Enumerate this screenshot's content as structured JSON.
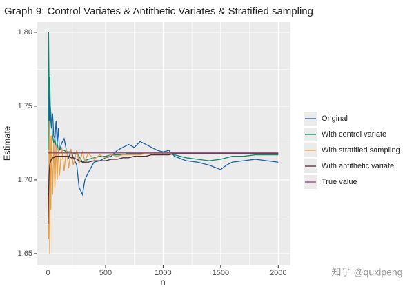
{
  "chart_data": {
    "type": "line",
    "title": "Graph 9: Control Variates & Antithetic Variates & Stratified sampling",
    "x_label": "n",
    "y_label": "Estimate",
    "watermark": "知乎 @quxipeng",
    "xlim": [
      -99,
      2100
    ],
    "xticks": [
      0,
      500,
      1000,
      1500,
      2000
    ],
    "ylim": [
      1.642,
      1.807
    ],
    "yticks": [
      {
        "value": 1.65,
        "label": "1.65"
      },
      {
        "value": 1.7,
        "label": "1.70"
      },
      {
        "value": 1.75,
        "label": "1.75"
      },
      {
        "value": 1.8,
        "label": "1.80"
      }
    ],
    "grid": true,
    "legend": "right",
    "x": [
      1,
      5,
      10,
      15,
      20,
      25,
      30,
      40,
      50,
      60,
      70,
      80,
      90,
      100,
      120,
      140,
      160,
      180,
      200,
      220,
      250,
      270,
      300,
      320,
      350,
      400,
      450,
      500,
      550,
      600,
      650,
      700,
      750,
      800,
      850,
      900,
      950,
      1000,
      1050,
      1100,
      1200,
      1300,
      1400,
      1500,
      1550,
      1600,
      1700,
      1800,
      1900,
      2000
    ],
    "series": [
      {
        "name": "Original",
        "color": "#1b5fa6",
        "values": [
          1.72,
          1.74,
          1.76,
          1.73,
          1.75,
          1.74,
          1.735,
          1.745,
          1.73,
          1.728,
          1.74,
          1.725,
          1.735,
          1.72,
          1.725,
          1.728,
          1.72,
          1.715,
          1.72,
          1.715,
          1.71,
          1.695,
          1.69,
          1.7,
          1.705,
          1.712,
          1.713,
          1.715,
          1.716,
          1.72,
          1.722,
          1.724,
          1.722,
          1.726,
          1.724,
          1.722,
          1.72,
          1.719,
          1.72,
          1.716,
          1.713,
          1.712,
          1.71,
          1.707,
          1.71,
          1.712,
          1.713,
          1.714,
          1.713,
          1.712
        ]
      },
      {
        "name": "With control variate",
        "color": "#0e8a6b",
        "values": [
          1.72,
          1.8,
          1.76,
          1.77,
          1.75,
          1.745,
          1.74,
          1.73,
          1.725,
          1.728,
          1.722,
          1.725,
          1.72,
          1.722,
          1.72,
          1.72,
          1.719,
          1.719,
          1.719,
          1.718,
          1.718,
          1.716,
          1.712,
          1.713,
          1.714,
          1.715,
          1.716,
          1.716,
          1.717,
          1.717,
          1.717,
          1.718,
          1.718,
          1.718,
          1.718,
          1.718,
          1.718,
          1.718,
          1.718,
          1.717,
          1.715,
          1.714,
          1.713,
          1.714,
          1.715,
          1.716,
          1.716,
          1.717,
          1.717,
          1.717
        ]
      },
      {
        "name": "With stratified sampling",
        "color": "#e8a048",
        "values": [
          1.69,
          1.66,
          1.74,
          1.65,
          1.73,
          1.68,
          1.73,
          1.69,
          1.725,
          1.695,
          1.724,
          1.7,
          1.722,
          1.703,
          1.722,
          1.706,
          1.721,
          1.708,
          1.721,
          1.71,
          1.72,
          1.711,
          1.719,
          1.713,
          1.718,
          1.714,
          1.717,
          1.715,
          1.717,
          1.716,
          1.717,
          1.717,
          1.717,
          1.717,
          1.718,
          1.718,
          1.718,
          1.718,
          1.718,
          1.718,
          1.718,
          1.718,
          1.718,
          1.718,
          1.718,
          1.718,
          1.718,
          1.718,
          1.718,
          1.718
        ]
      },
      {
        "name": "With antithetic variate",
        "color": "#4b2d3c",
        "values": [
          1.67,
          1.69,
          1.705,
          1.71,
          1.712,
          1.713,
          1.714,
          1.715,
          1.715,
          1.716,
          1.716,
          1.716,
          1.716,
          1.716,
          1.716,
          1.716,
          1.716,
          1.716,
          1.715,
          1.715,
          1.714,
          1.713,
          1.712,
          1.712,
          1.712,
          1.713,
          1.713,
          1.713,
          1.714,
          1.714,
          1.715,
          1.715,
          1.716,
          1.716,
          1.716,
          1.717,
          1.717,
          1.717,
          1.717,
          1.718,
          1.718,
          1.718,
          1.718,
          1.718,
          1.718,
          1.718,
          1.718,
          1.718,
          1.718,
          1.718
        ]
      },
      {
        "name": "True value",
        "color": "#a03d7e",
        "value": 1.71828
      }
    ]
  }
}
